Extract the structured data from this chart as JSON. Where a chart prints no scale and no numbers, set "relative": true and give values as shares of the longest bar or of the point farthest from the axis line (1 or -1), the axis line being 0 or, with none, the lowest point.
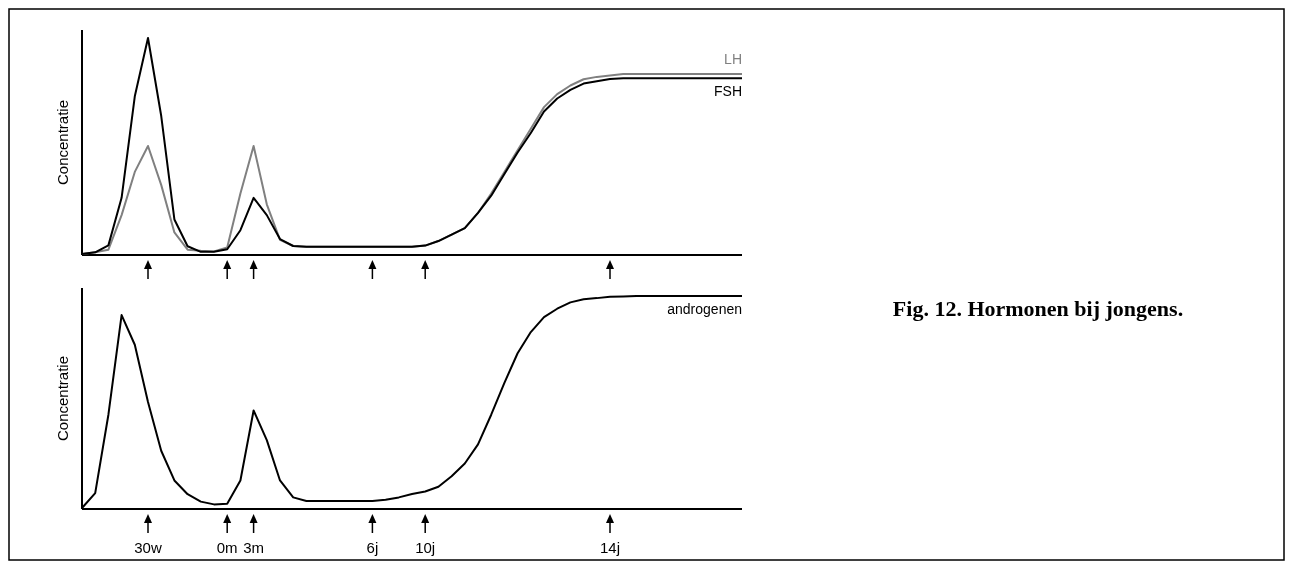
{
  "chart_data": [
    {
      "type": "line",
      "ylabel": "Concentratie",
      "relative": true,
      "legend": false,
      "marker": "none",
      "line_style": "solid",
      "categories": [
        null,
        null,
        null,
        null,
        null,
        null,
        null,
        null,
        null,
        null,
        null,
        null,
        null,
        null,
        null,
        null,
        null,
        null,
        null,
        null,
        null,
        null,
        null,
        null,
        null,
        null,
        null,
        null,
        null,
        null,
        null,
        null,
        null,
        null,
        null,
        null,
        null,
        null,
        null,
        null,
        null,
        null,
        null,
        null,
        null,
        null,
        null,
        null,
        null,
        null,
        null
      ],
      "series": [
        {
          "name": "LH",
          "color": "#808080",
          "values": [
            0,
            0.008,
            0.02,
            0.18,
            0.38,
            0.5,
            0.32,
            0.1,
            0.02,
            0.015,
            0.012,
            0.03,
            0.28,
            0.5,
            0.23,
            0.065,
            0.037,
            0.034,
            0.034,
            0.034,
            0.034,
            0.034,
            0.034,
            0.034,
            0.034,
            0.034,
            0.039,
            0.06,
            0.09,
            0.12,
            0.19,
            0.28,
            0.38,
            0.48,
            0.58,
            0.68,
            0.74,
            0.78,
            0.809,
            0.82,
            0.826,
            0.833,
            0.833,
            0.833,
            0.833,
            0.833,
            0.833,
            0.833,
            0.833,
            0.833,
            0.833
          ]
        },
        {
          "name": "FSH",
          "color": "#000000",
          "values": [
            0,
            0.008,
            0.04,
            0.26,
            0.73,
            1,
            0.64,
            0.16,
            0.036,
            0.01,
            0.01,
            0.022,
            0.11,
            0.26,
            0.18,
            0.069,
            0.037,
            0.034,
            0.034,
            0.034,
            0.034,
            0.034,
            0.034,
            0.034,
            0.034,
            0.034,
            0.039,
            0.06,
            0.09,
            0.12,
            0.19,
            0.27,
            0.37,
            0.47,
            0.56,
            0.66,
            0.72,
            0.76,
            0.789,
            0.8,
            0.81,
            0.814,
            0.814,
            0.814,
            0.814,
            0.814,
            0.814,
            0.814,
            0.814,
            0.814,
            0.814
          ]
        }
      ]
    },
    {
      "type": "line",
      "ylabel": "Concentratie",
      "relative": true,
      "legend": false,
      "marker": "none",
      "line_style": "solid",
      "annotations": [
        "Fig. 12. Hormonen bij jongens."
      ],
      "categories": [
        null,
        null,
        null,
        null,
        null,
        "30w",
        null,
        null,
        null,
        null,
        null,
        "0m",
        null,
        "3m",
        null,
        null,
        null,
        null,
        null,
        null,
        null,
        null,
        "6j",
        null,
        null,
        null,
        "10j",
        null,
        null,
        null,
        null,
        null,
        null,
        null,
        null,
        null,
        null,
        null,
        null,
        null,
        "14j",
        null,
        null,
        null,
        null,
        null,
        null,
        null,
        null,
        null,
        null
      ],
      "series": [
        {
          "name": "androgenen",
          "color": "#000000",
          "values": [
            0,
            0.07,
            0.44,
            0.91,
            0.77,
            0.5,
            0.27,
            0.13,
            0.065,
            0.03,
            0.017,
            0.02,
            0.13,
            0.46,
            0.32,
            0.13,
            0.05,
            0.033,
            0.033,
            0.033,
            0.033,
            0.033,
            0.033,
            0.039,
            0.05,
            0.066,
            0.078,
            0.1,
            0.15,
            0.21,
            0.3,
            0.44,
            0.59,
            0.73,
            0.83,
            0.9,
            0.94,
            0.97,
            0.985,
            0.99,
            0.997,
            0.998,
            1,
            1,
            1,
            1,
            1,
            1,
            1,
            1,
            1
          ]
        }
      ]
    }
  ]
}
